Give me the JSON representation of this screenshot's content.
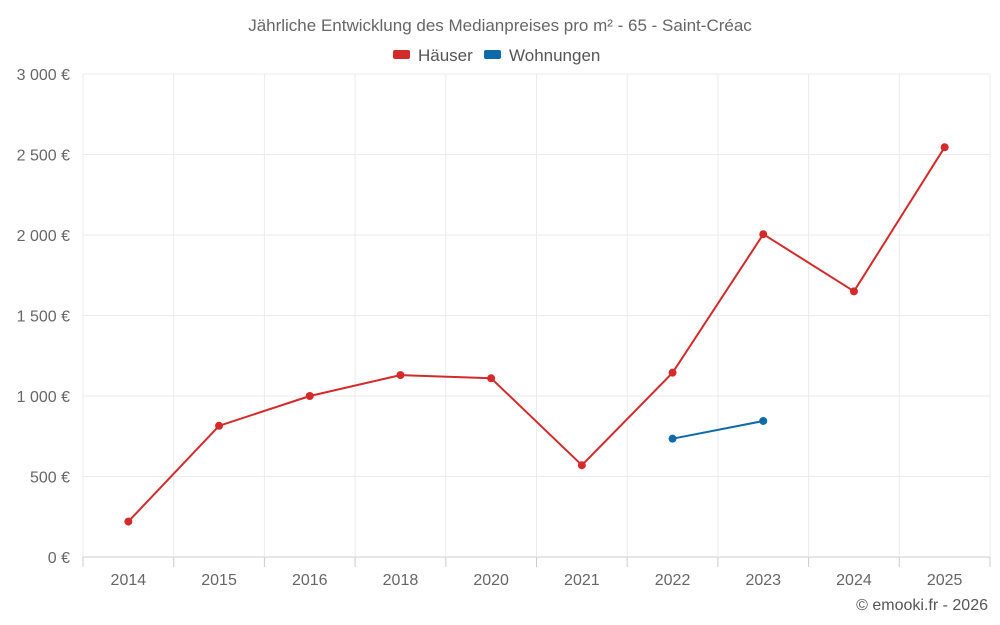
{
  "chart_data": {
    "type": "line",
    "title": "Jährliche Entwicklung des Medianpreises pro m² - 65 - Saint-Créac",
    "categories": [
      "2014",
      "2015",
      "2016",
      "2018",
      "2020",
      "2021",
      "2022",
      "2023",
      "2024",
      "2025"
    ],
    "ylim": [
      0,
      3000
    ],
    "yticks": [
      0,
      500,
      1000,
      1500,
      2000,
      2500,
      3000
    ],
    "ytick_labels": [
      "0 €",
      "500 €",
      "1 000 €",
      "1 500 €",
      "2 000 €",
      "2 500 €",
      "3 000 €"
    ],
    "grid": true,
    "legend_position": "top-center",
    "series": [
      {
        "name": "Häuser",
        "color": "#d42a2a",
        "values": [
          220,
          815,
          1000,
          1130,
          1110,
          570,
          1145,
          2005,
          1650,
          2545
        ]
      },
      {
        "name": "Wohnungen",
        "color": "#0e6aa8",
        "values": [
          null,
          null,
          null,
          null,
          null,
          null,
          735,
          845,
          null,
          null
        ]
      }
    ],
    "credit": "© emooki.fr - 2026"
  }
}
